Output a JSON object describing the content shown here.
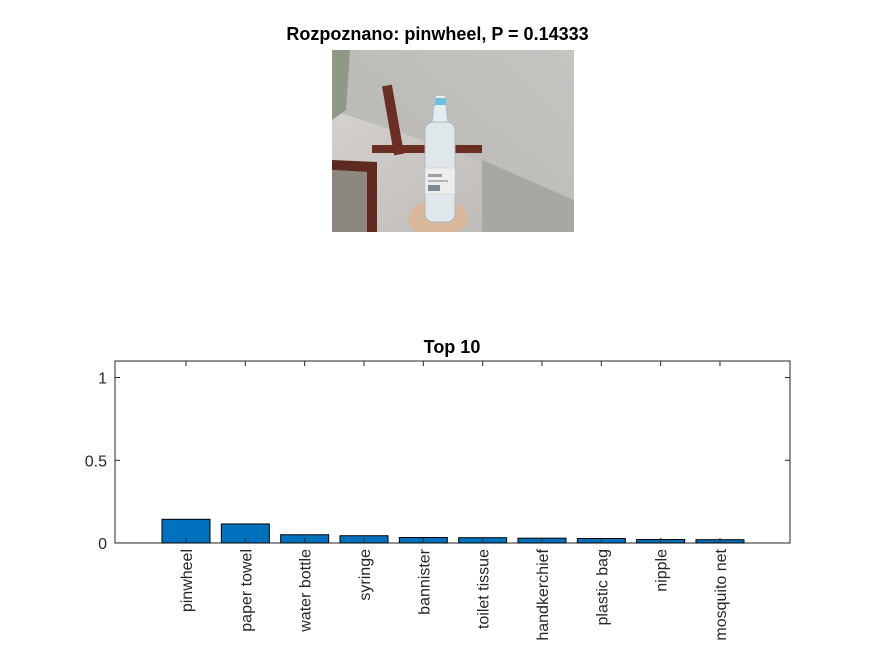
{
  "figure": {
    "image_title": "Rozpoznano: pinwheel, P = 0.14333",
    "photo": {
      "icon": "webcam-photo-hand-holding-water-bottle",
      "colors": {
        "wall": "#c9c6c3",
        "ceiling_beam": "#6b2e22",
        "bottle": "#dfe7ea",
        "cap": "#6cc0df"
      }
    }
  },
  "chart_data": {
    "type": "bar",
    "title": "Top 10",
    "xlabel": "",
    "ylabel": "",
    "categories": [
      "pinwheel",
      "paper towel",
      "water bottle",
      "syringe",
      "bannister",
      "toilet tissue",
      "handkerchief",
      "plastic bag",
      "nipple",
      "mosquito net"
    ],
    "values": [
      0.14333,
      0.115,
      0.05,
      0.044,
      0.033,
      0.032,
      0.029,
      0.027,
      0.021,
      0.02
    ],
    "ylim": [
      0,
      1.1
    ],
    "yticks": [
      0,
      0.5,
      1
    ],
    "ytick_labels": [
      "0",
      "0.5",
      "1"
    ],
    "bar_color": "#0072bd",
    "grid": false,
    "legend": "none"
  }
}
